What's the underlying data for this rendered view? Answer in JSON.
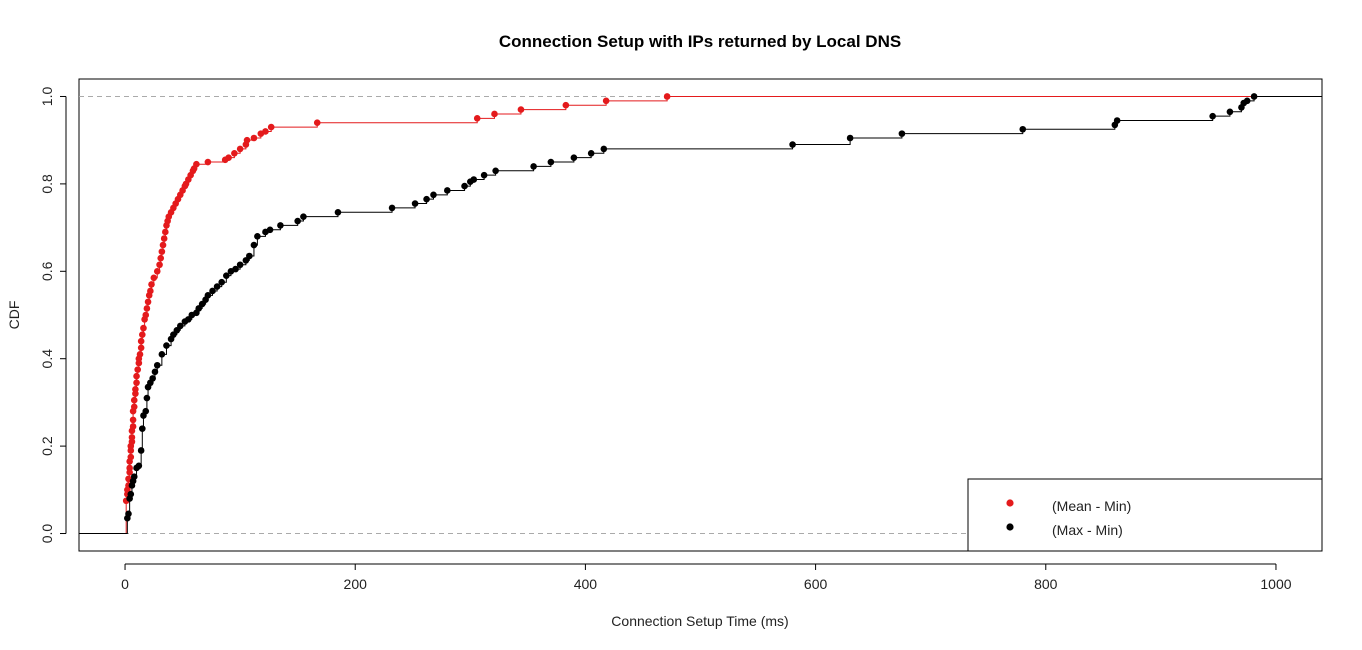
{
  "chart_data": {
    "type": "line",
    "title": "Connection Setup with IPs returned by Local DNS",
    "xlabel": "Connection Setup Time (ms)",
    "ylabel": "CDF",
    "xlim": [
      -40,
      1040
    ],
    "ylim": [
      -0.04,
      1.04
    ],
    "xticks": [
      0,
      200,
      400,
      600,
      800,
      1000
    ],
    "yticks": [
      "0.0",
      "0.2",
      "0.4",
      "0.6",
      "0.8",
      "1.0"
    ],
    "reference_lines_y": [
      0,
      1
    ],
    "grid": false,
    "legend_position": "bottom-right",
    "series": [
      {
        "name": "(Mean - Min)",
        "color": "#e41a1c",
        "x": [
          1,
          2,
          2,
          3,
          3,
          4,
          4,
          4,
          5,
          5,
          5,
          6,
          6,
          6,
          7,
          7,
          7,
          8,
          8,
          9,
          9,
          10,
          10,
          11,
          12,
          12,
          13,
          14,
          14,
          15,
          16,
          17,
          18,
          19,
          20,
          21,
          22,
          23,
          25,
          28,
          30,
          31,
          32,
          33,
          34,
          35,
          36,
          37,
          38,
          40,
          42,
          44,
          46,
          48,
          50,
          52,
          53,
          55,
          57,
          59,
          60,
          62,
          72,
          87,
          90,
          95,
          100,
          105,
          106,
          112,
          118,
          122,
          127,
          167,
          306,
          321,
          344,
          383,
          418,
          471
        ],
        "y": [
          0.075,
          0.09,
          0.1,
          0.11,
          0.125,
          0.14,
          0.15,
          0.165,
          0.175,
          0.19,
          0.2,
          0.21,
          0.22,
          0.235,
          0.245,
          0.26,
          0.28,
          0.29,
          0.305,
          0.32,
          0.33,
          0.345,
          0.36,
          0.375,
          0.39,
          0.4,
          0.41,
          0.425,
          0.44,
          0.455,
          0.47,
          0.49,
          0.5,
          0.515,
          0.53,
          0.545,
          0.555,
          0.57,
          0.585,
          0.6,
          0.615,
          0.63,
          0.645,
          0.66,
          0.675,
          0.69,
          0.705,
          0.715,
          0.725,
          0.735,
          0.745,
          0.755,
          0.765,
          0.775,
          0.785,
          0.795,
          0.8,
          0.81,
          0.82,
          0.83,
          0.835,
          0.845,
          0.85,
          0.855,
          0.86,
          0.87,
          0.88,
          0.89,
          0.9,
          0.905,
          0.915,
          0.92,
          0.93,
          0.94,
          0.95,
          0.96,
          0.97,
          0.98,
          0.99,
          1.0
        ]
      },
      {
        "name": "(Max - Min)",
        "color": "#000000",
        "x": [
          2,
          3,
          4,
          5,
          6,
          7,
          8,
          10,
          12,
          14,
          15,
          16,
          18,
          19,
          20,
          22,
          24,
          26,
          28,
          32,
          36,
          40,
          42,
          45,
          48,
          52,
          55,
          58,
          62,
          64,
          67,
          70,
          72,
          76,
          80,
          84,
          88,
          92,
          96,
          100,
          105,
          108,
          112,
          115,
          122,
          126,
          135,
          150,
          155,
          185,
          232,
          252,
          262,
          268,
          280,
          295,
          300,
          303,
          312,
          322,
          355,
          370,
          390,
          405,
          416,
          580,
          630,
          675,
          780,
          860,
          862,
          945,
          960,
          970,
          972,
          975,
          981
        ],
        "y": [
          0.035,
          0.045,
          0.08,
          0.09,
          0.11,
          0.12,
          0.13,
          0.15,
          0.155,
          0.19,
          0.24,
          0.27,
          0.28,
          0.31,
          0.335,
          0.345,
          0.355,
          0.37,
          0.385,
          0.41,
          0.43,
          0.445,
          0.455,
          0.465,
          0.475,
          0.485,
          0.49,
          0.5,
          0.505,
          0.515,
          0.525,
          0.535,
          0.545,
          0.555,
          0.565,
          0.575,
          0.59,
          0.6,
          0.605,
          0.615,
          0.625,
          0.635,
          0.66,
          0.68,
          0.69,
          0.695,
          0.705,
          0.715,
          0.725,
          0.735,
          0.745,
          0.755,
          0.765,
          0.775,
          0.785,
          0.795,
          0.805,
          0.81,
          0.82,
          0.83,
          0.84,
          0.85,
          0.86,
          0.87,
          0.88,
          0.89,
          0.905,
          0.915,
          0.925,
          0.935,
          0.945,
          0.955,
          0.965,
          0.975,
          0.985,
          0.99,
          1.0
        ]
      }
    ]
  }
}
